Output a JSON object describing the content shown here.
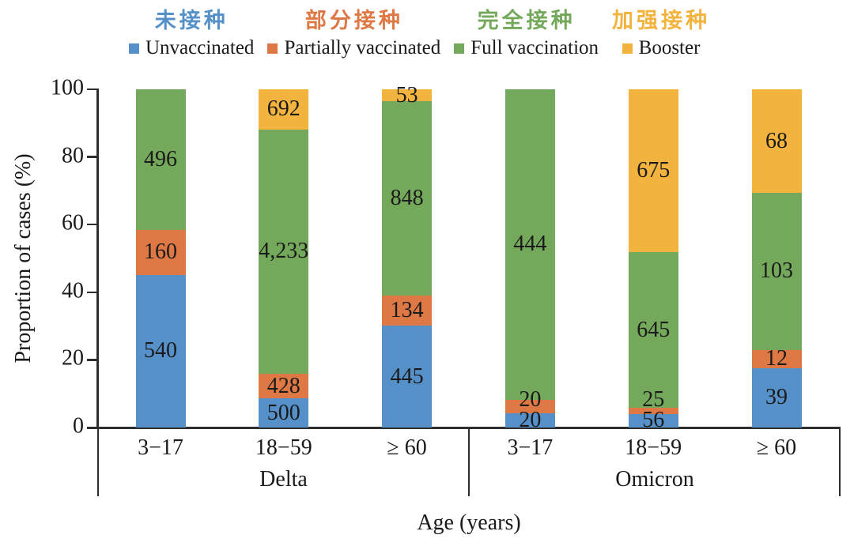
{
  "figure": {
    "background": "#ffffff",
    "text_color": "#1a1a1a",
    "axis_color": "#2e2e2e"
  },
  "chart_data": {
    "type": "bar",
    "subtype": "100pct-stacked-vertical",
    "ylabel": "Proportion of cases (%)",
    "xlabel": "Age (years)",
    "ylim": [
      0,
      100
    ],
    "y_ticks": [
      0,
      20,
      40,
      60,
      80,
      100
    ],
    "grid": "off",
    "legend_position": "top",
    "groups": [
      "Delta",
      "Omicron"
    ],
    "age_categories": [
      "3−17",
      "18−59",
      "≥ 60"
    ],
    "series": [
      {
        "label_zh": "未接种",
        "label_en": "Unvaccinated",
        "color": "#5590C8"
      },
      {
        "label_zh": "部分接种",
        "label_en": "Partially vaccinated",
        "color": "#DE7845"
      },
      {
        "label_zh": "完全接种",
        "label_en": "Full vaccination",
        "color": "#74A85A"
      },
      {
        "label_zh": "加强接种",
        "label_en": "Booster",
        "color": "#F3B33F"
      }
    ],
    "bars": [
      {
        "group": "Delta",
        "age": "3−17",
        "values": [
          540,
          160,
          496,
          0
        ]
      },
      {
        "group": "Delta",
        "age": "18−59",
        "values": [
          500,
          428,
          4233,
          692
        ]
      },
      {
        "group": "Delta",
        "age": "≥ 60",
        "values": [
          445,
          134,
          848,
          53
        ]
      },
      {
        "group": "Omicron",
        "age": "3−17",
        "values": [
          20,
          20,
          444,
          0
        ]
      },
      {
        "group": "Omicron",
        "age": "18−59",
        "values": [
          56,
          25,
          645,
          675
        ]
      },
      {
        "group": "Omicron",
        "age": "≥ 60",
        "values": [
          39,
          12,
          103,
          68
        ]
      }
    ]
  }
}
